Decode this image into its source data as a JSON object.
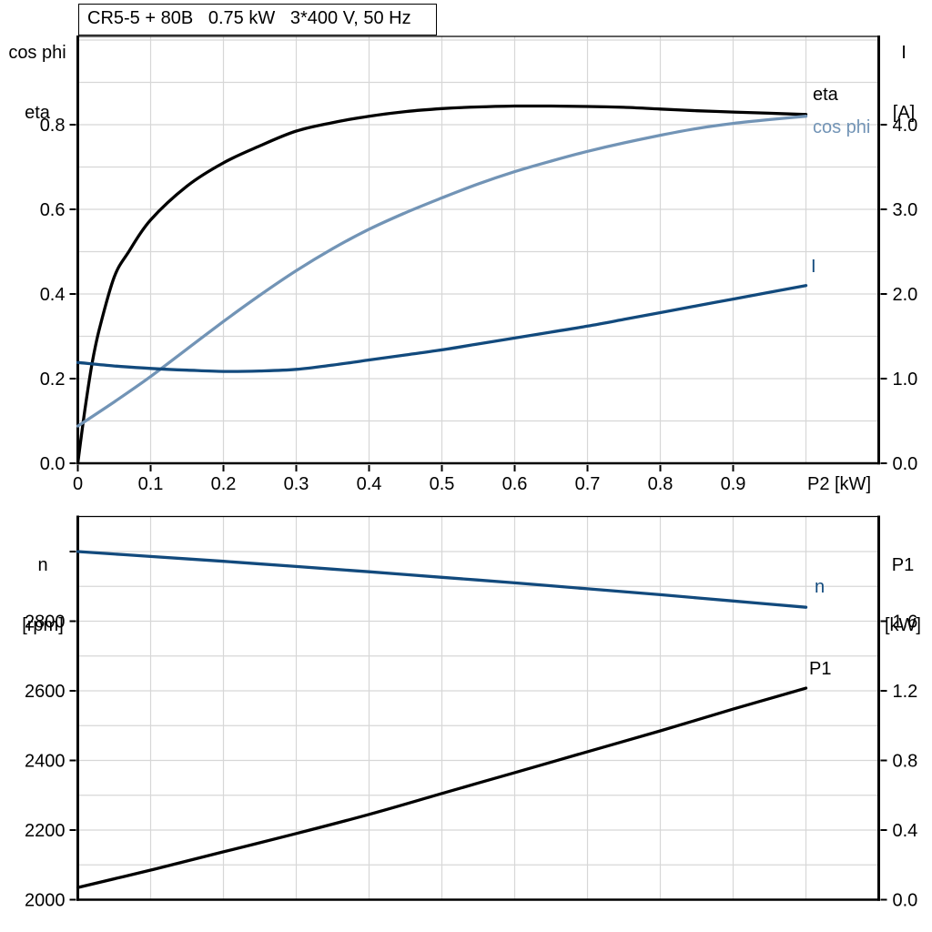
{
  "header": {
    "title": "CR5-5 + 80B   0.75 kW   3*400 V, 50 Hz"
  },
  "colors": {
    "background": "#ffffff",
    "axis_black": "#000000",
    "grid_gray": "#d7d7d7",
    "eta_black": "#000000",
    "cos_phi_blue": "#7294b6",
    "current_blue": "#124a7d"
  },
  "top_chart": {
    "left_axis_title_line1": "cos phi",
    "left_axis_title_line2": "eta",
    "right_axis_title_line1": "I",
    "right_axis_title_line2": "[A]"
  },
  "bottom_chart": {
    "left_axis_title_line1": "n",
    "left_axis_title_line2": "[rpm]",
    "right_axis_title_line1": "P1",
    "right_axis_title_line2": "[kW]"
  },
  "chart_data": [
    {
      "type": "line",
      "title": "CR5-5 + 80B   0.75 kW   3*400 V, 50 Hz",
      "x_axis": {
        "label": "P2 [kW]",
        "min": 0,
        "max": 1.1,
        "grid_step": 0.1,
        "tick_values": [
          0,
          0.1,
          0.2,
          0.3,
          0.4,
          0.5,
          0.6,
          0.7,
          0.8,
          0.9
        ],
        "tick_labels": [
          "0",
          "0.1",
          "0.2",
          "0.3",
          "0.4",
          "0.5",
          "0.6",
          "0.7",
          "0.8",
          "0.9"
        ]
      },
      "y_left": {
        "label": "cos phi / eta",
        "min": 0,
        "max": 1.0,
        "grid_step": 0.1,
        "tick_values": [
          0,
          0.2,
          0.4,
          0.6,
          0.8
        ],
        "tick_labels": [
          "0.0",
          "0.2",
          "0.4",
          "0.6",
          "0.8"
        ]
      },
      "y_right": {
        "label": "I [A]",
        "min": 0,
        "max": 4.0,
        "tick_values": [
          0,
          1,
          2,
          3,
          4
        ],
        "tick_labels": [
          "0.0",
          "1.0",
          "2.0",
          "3.0",
          "4.0"
        ]
      },
      "legend_position": "right-of-curve-ends",
      "grid": true,
      "series": [
        {
          "name": "eta",
          "axis": "left",
          "color": "#000000",
          "x": [
            0,
            0.01,
            0.02,
            0.03,
            0.05,
            0.07,
            0.1,
            0.15,
            0.2,
            0.25,
            0.3,
            0.35,
            0.4,
            0.45,
            0.5,
            0.55,
            0.6,
            0.65,
            0.7,
            0.75,
            0.8,
            0.85,
            0.9,
            0.95,
            1.0
          ],
          "y": [
            0,
            0.13,
            0.24,
            0.32,
            0.44,
            0.5,
            0.575,
            0.655,
            0.71,
            0.75,
            0.785,
            0.805,
            0.82,
            0.831,
            0.838,
            0.842,
            0.844,
            0.844,
            0.843,
            0.841,
            0.837,
            0.833,
            0.83,
            0.827,
            0.824
          ]
        },
        {
          "name": "cos phi",
          "axis": "left",
          "color": "#7294b6",
          "x": [
            0,
            0.05,
            0.1,
            0.15,
            0.2,
            0.25,
            0.3,
            0.35,
            0.4,
            0.45,
            0.5,
            0.55,
            0.6,
            0.65,
            0.7,
            0.75,
            0.8,
            0.85,
            0.9,
            0.95,
            1.0
          ],
          "y": [
            0.088,
            0.145,
            0.205,
            0.27,
            0.335,
            0.397,
            0.455,
            0.507,
            0.553,
            0.592,
            0.627,
            0.66,
            0.689,
            0.714,
            0.737,
            0.757,
            0.775,
            0.791,
            0.803,
            0.812,
            0.82
          ]
        },
        {
          "name": "I",
          "axis": "right",
          "color": "#124a7d",
          "x": [
            0,
            0.05,
            0.1,
            0.15,
            0.2,
            0.25,
            0.3,
            0.35,
            0.4,
            0.45,
            0.5,
            0.55,
            0.6,
            0.65,
            0.7,
            0.75,
            0.8,
            0.85,
            0.9,
            0.95,
            1.0
          ],
          "y": [
            1.19,
            1.15,
            1.12,
            1.1,
            1.085,
            1.09,
            1.11,
            1.16,
            1.22,
            1.28,
            1.34,
            1.41,
            1.48,
            1.55,
            1.62,
            1.7,
            1.78,
            1.86,
            1.94,
            2.02,
            2.1
          ]
        }
      ]
    },
    {
      "type": "line",
      "title": "",
      "x_axis": {
        "label": "",
        "min": 0,
        "max": 1.1,
        "grid_step": 0.1,
        "tick_values": [],
        "tick_labels": []
      },
      "y_left": {
        "label": "n [rpm]",
        "min": 2000,
        "max": 3100,
        "grid_step": 100,
        "tick_values": [
          2000,
          2200,
          2400,
          2600,
          2800,
          3000
        ],
        "tick_labels": [
          "2000",
          "2200",
          "2400",
          "2600",
          "2800",
          ""
        ]
      },
      "y_right": {
        "label": "P1 [kW]",
        "min": 0,
        "max": 2.2,
        "tick_values": [
          0,
          0.4,
          0.8,
          1.2,
          1.6
        ],
        "tick_labels": [
          "0.0",
          "0.4",
          "0.8",
          "1.2",
          "1.6"
        ]
      },
      "grid": true,
      "series": [
        {
          "name": "n",
          "axis": "left",
          "color": "#124a7d",
          "x": [
            0,
            0.1,
            0.2,
            0.3,
            0.4,
            0.5,
            0.6,
            0.7,
            0.8,
            0.9,
            1.0
          ],
          "y": [
            3000,
            2986,
            2972,
            2957,
            2942,
            2926,
            2910,
            2893,
            2876,
            2858,
            2840
          ]
        },
        {
          "name": "P1",
          "axis": "right",
          "color": "#000000",
          "x": [
            0,
            0.1,
            0.2,
            0.3,
            0.4,
            0.5,
            0.6,
            0.7,
            0.8,
            0.9,
            1.0
          ],
          "y": [
            0.07,
            0.17,
            0.275,
            0.38,
            0.49,
            0.61,
            0.73,
            0.85,
            0.97,
            1.095,
            1.215
          ]
        }
      ]
    }
  ]
}
